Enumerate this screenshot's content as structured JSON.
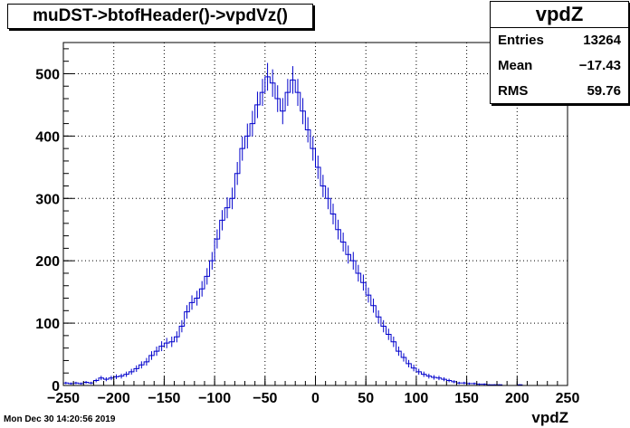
{
  "title": "muDST->btofHeader()->vpdVz()",
  "stats": {
    "name": "vpdZ",
    "rows": [
      {
        "key": "Entries",
        "value": "13264"
      },
      {
        "key": "Mean",
        "value": "−17.43"
      },
      {
        "key": "RMS",
        "value": "59.76"
      }
    ]
  },
  "footer_date": "Mon Dec 30 14:20:56 2019",
  "colors": {
    "line": "#0000cc",
    "axis": "#000000",
    "grid": "#000000"
  },
  "chart_data": {
    "type": "histogram",
    "xlabel": "vpdZ",
    "ylabel": "",
    "xlim": [
      -250,
      250
    ],
    "ylim": [
      0,
      550
    ],
    "grid": true,
    "x_ticks": [
      -250,
      -200,
      -150,
      -100,
      -50,
      0,
      50,
      100,
      150,
      200,
      250
    ],
    "y_ticks": [
      0,
      100,
      200,
      300,
      400,
      500
    ],
    "bin_width": 5,
    "bin_start": -250,
    "values": [
      4,
      3,
      4,
      3,
      5,
      4,
      8,
      12,
      10,
      12,
      14,
      15,
      18,
      22,
      27,
      33,
      38,
      48,
      55,
      63,
      68,
      70,
      78,
      95,
      118,
      133,
      140,
      155,
      175,
      200,
      235,
      265,
      285,
      300,
      340,
      380,
      400,
      420,
      450,
      470,
      495,
      485,
      460,
      440,
      470,
      490,
      470,
      440,
      410,
      380,
      350,
      320,
      300,
      275,
      250,
      230,
      210,
      200,
      180,
      165,
      145,
      128,
      110,
      95,
      82,
      70,
      55,
      45,
      35,
      28,
      22,
      18,
      15,
      13,
      12,
      10,
      8,
      6,
      4,
      4,
      3,
      3,
      2,
      2,
      1,
      1,
      1,
      0,
      0,
      0,
      1,
      0,
      0,
      0,
      0,
      0,
      0,
      0,
      0,
      0
    ]
  }
}
